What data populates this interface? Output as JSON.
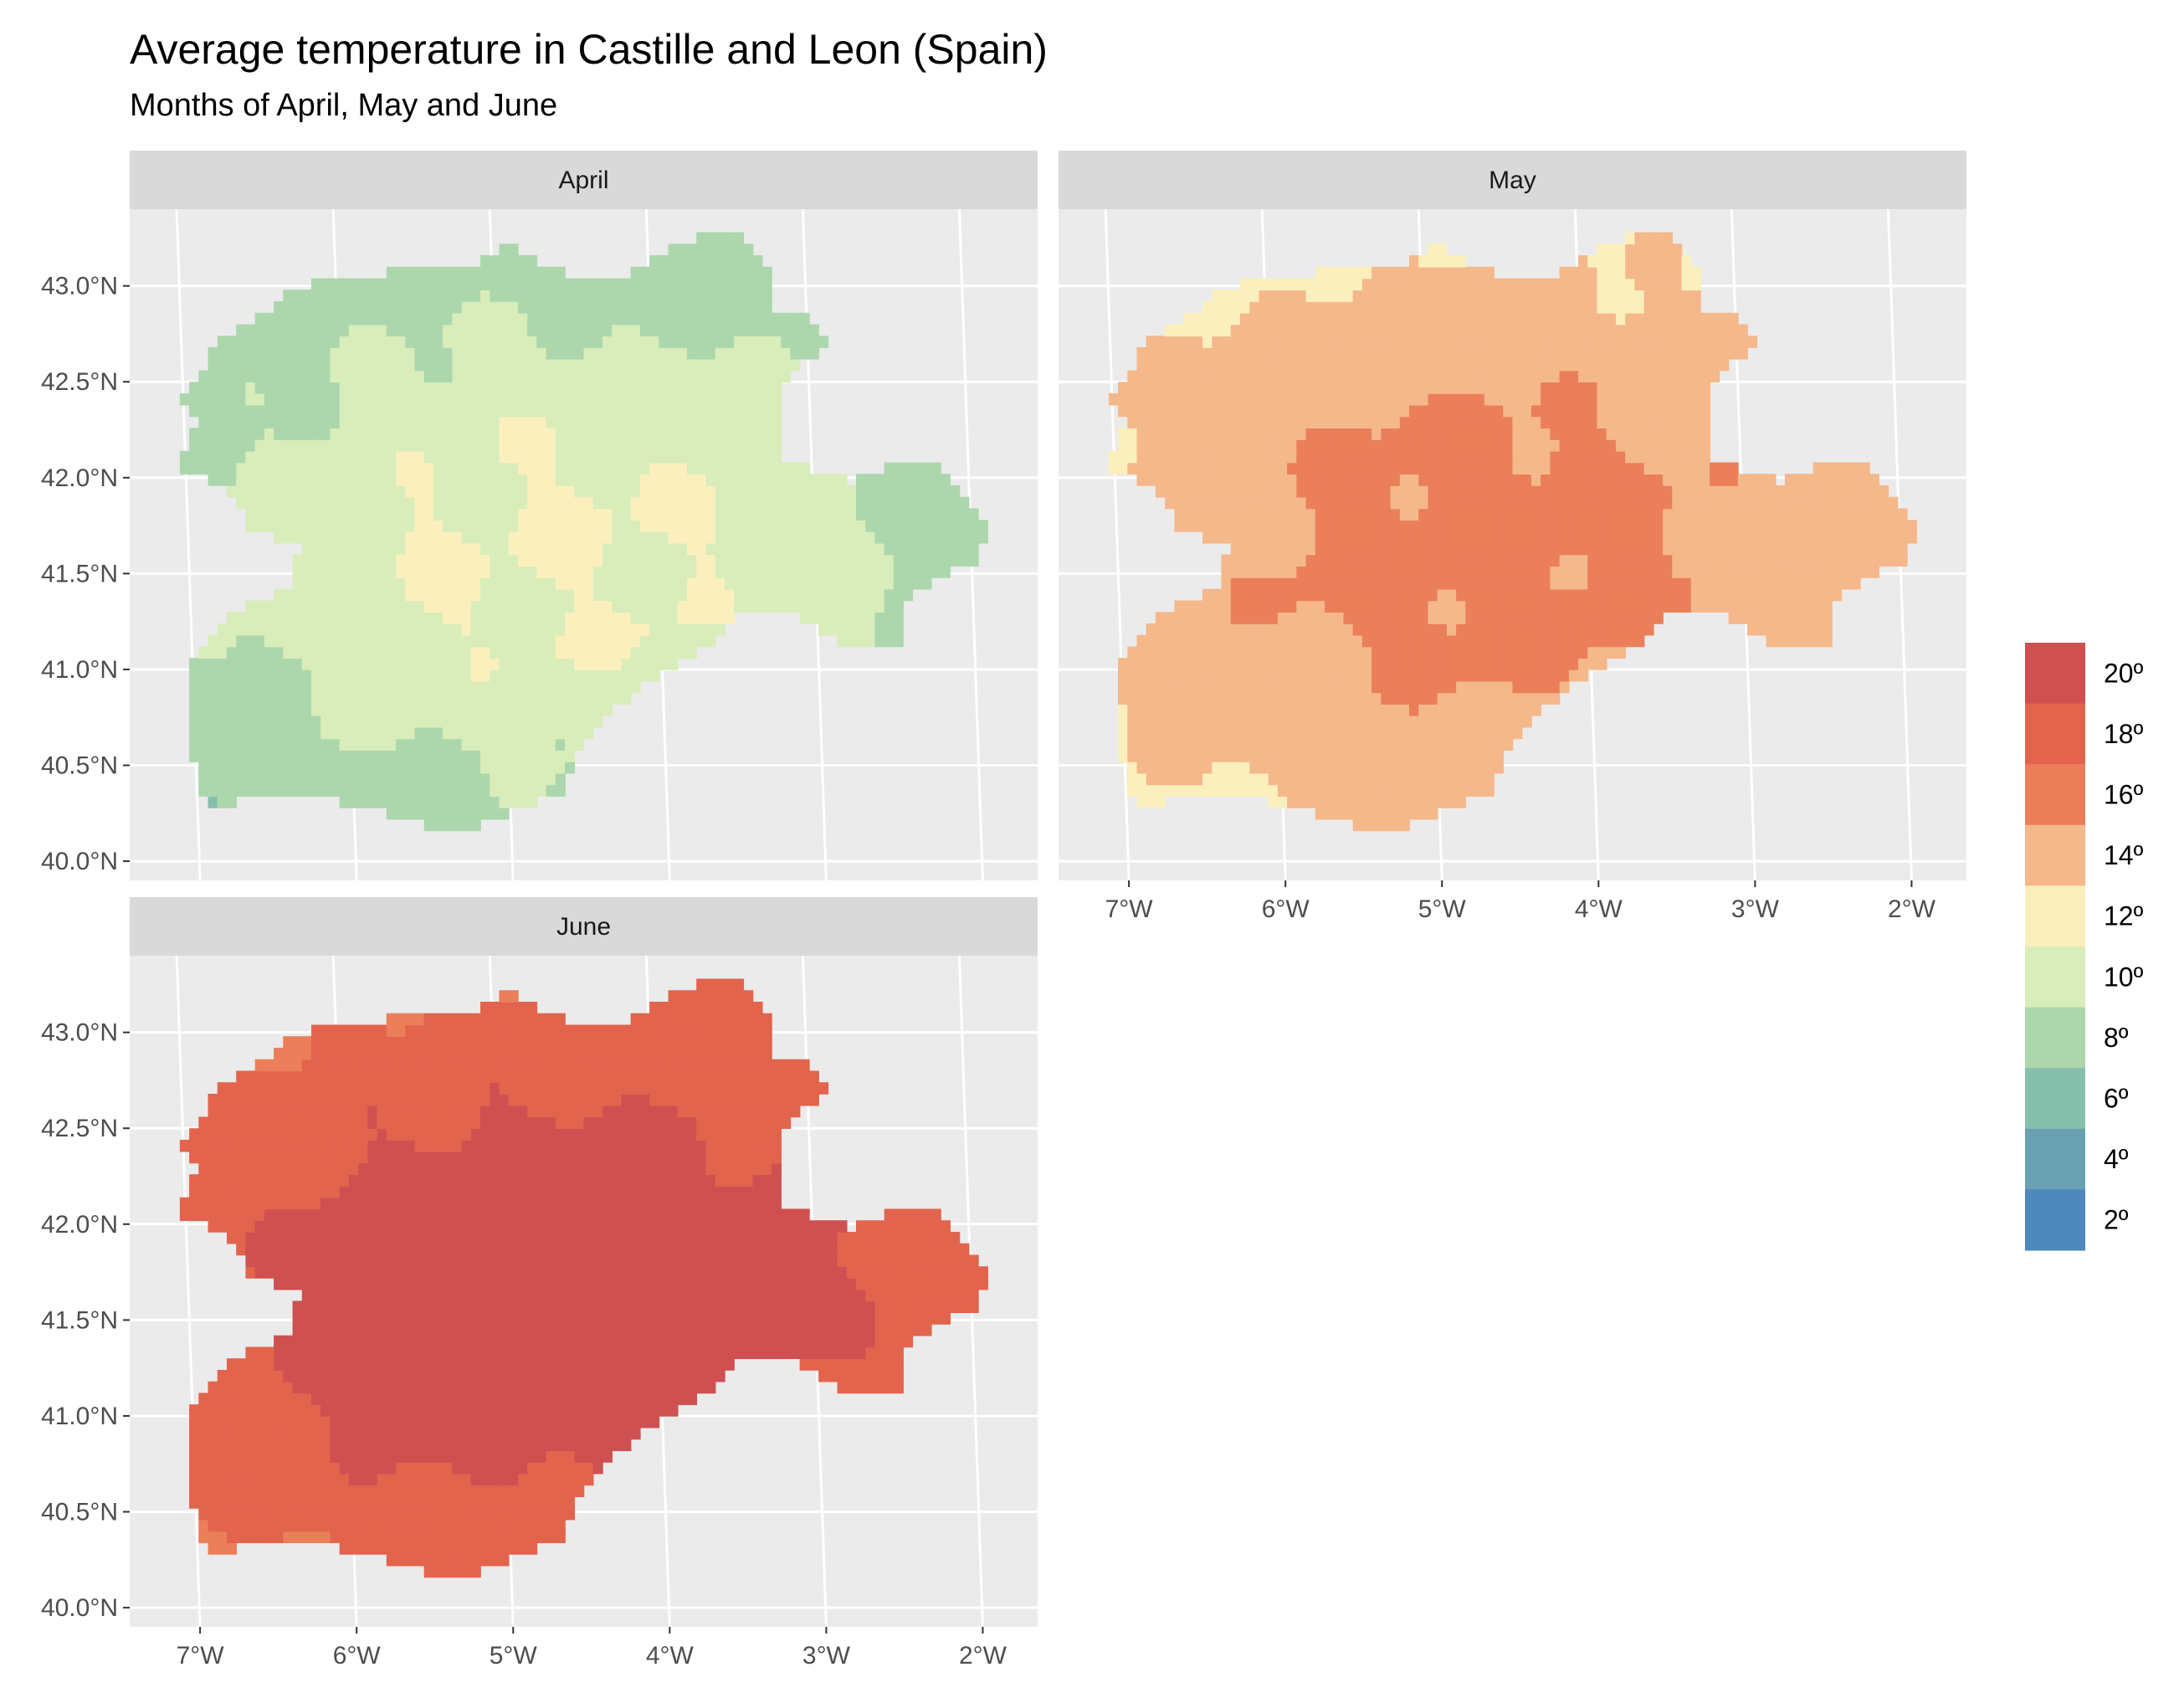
{
  "title": "Average temperature in Castille and Leon (Spain)",
  "subtitle": "Months of April, May and June",
  "colors": {
    "panel_background": "#ebebeb",
    "strip_background": "#d9d9d9",
    "grid": "#ffffff",
    "palette": [
      "#4e88bc",
      "#69a1b2",
      "#86c0ad",
      "#acd7ad",
      "#d8edba",
      "#fbf0bd",
      "#f5b88b",
      "#ea7f5a",
      "#e2644d",
      "#cf5050"
    ]
  },
  "chart_data": {
    "type": "heatmap",
    "title": "Average temperature in Castille and Leon (Spain)",
    "subtitle": "Months of April, May and June",
    "facets": [
      {
        "label": "April",
        "shade_base": 8.5,
        "shade_amp": 2.5,
        "approx_range": [
          2,
          13
        ]
      },
      {
        "label": "May",
        "shade_base": 13.5,
        "shade_amp": 2.0,
        "approx_range": [
          6,
          18
        ]
      },
      {
        "label": "June",
        "shade_base": 18.0,
        "shade_amp": 2.5,
        "approx_range": [
          11,
          21
        ]
      }
    ],
    "x_ticks": [
      "7°W",
      "6°W",
      "5°W",
      "4°W",
      "3°W",
      "2°W"
    ],
    "x_tick_values": [
      -7,
      -6,
      -5,
      -4,
      -3,
      -2
    ],
    "y_ticks": [
      "40.0°N",
      "40.5°N",
      "41.0°N",
      "41.5°N",
      "42.0°N",
      "42.5°N",
      "43.0°N"
    ],
    "y_tick_values": [
      40.0,
      40.5,
      41.0,
      41.5,
      42.0,
      42.5,
      43.0
    ],
    "xlim": [
      -7.3,
      -1.5
    ],
    "ylim": [
      39.9,
      43.4
    ],
    "region_outline": [
      [
        -6.9,
        42.5
      ],
      [
        -6.75,
        42.7
      ],
      [
        -6.45,
        42.85
      ],
      [
        -6.3,
        42.95
      ],
      [
        -6.1,
        43.0
      ],
      [
        -5.85,
        43.03
      ],
      [
        -5.5,
        43.05
      ],
      [
        -5.1,
        43.1
      ],
      [
        -4.9,
        43.2
      ],
      [
        -4.6,
        43.05
      ],
      [
        -4.35,
        42.98
      ],
      [
        -4.1,
        43.05
      ],
      [
        -3.85,
        43.2
      ],
      [
        -3.45,
        43.25
      ],
      [
        -3.25,
        43.05
      ],
      [
        -3.2,
        42.85
      ],
      [
        -3.0,
        42.8
      ],
      [
        -2.85,
        42.65
      ],
      [
        -3.1,
        42.55
      ],
      [
        -3.2,
        42.3
      ],
      [
        -3.2,
        42.1
      ],
      [
        -2.95,
        42.0
      ],
      [
        -2.7,
        41.95
      ],
      [
        -2.45,
        42.05
      ],
      [
        -2.15,
        42.05
      ],
      [
        -1.95,
        41.85
      ],
      [
        -1.85,
        41.75
      ],
      [
        -1.9,
        41.55
      ],
      [
        -2.2,
        41.45
      ],
      [
        -2.4,
        41.3
      ],
      [
        -2.4,
        41.1
      ],
      [
        -2.7,
        41.1
      ],
      [
        -2.9,
        41.15
      ],
      [
        -3.05,
        41.25
      ],
      [
        -3.45,
        41.25
      ],
      [
        -3.7,
        41.05
      ],
      [
        -3.95,
        40.95
      ],
      [
        -4.25,
        40.75
      ],
      [
        -4.45,
        40.6
      ],
      [
        -4.55,
        40.35
      ],
      [
        -4.85,
        40.25
      ],
      [
        -5.0,
        40.18
      ],
      [
        -5.3,
        40.12
      ],
      [
        -5.7,
        40.22
      ],
      [
        -6.05,
        40.3
      ],
      [
        -6.5,
        40.3
      ],
      [
        -6.85,
        40.25
      ],
      [
        -6.95,
        40.6
      ],
      [
        -6.95,
        41.0
      ],
      [
        -6.7,
        41.25
      ],
      [
        -6.3,
        41.4
      ],
      [
        -6.25,
        41.6
      ],
      [
        -6.55,
        41.7
      ],
      [
        -6.75,
        41.95
      ],
      [
        -7.05,
        42.0
      ],
      [
        -6.9,
        42.25
      ],
      [
        -7.0,
        42.4
      ],
      [
        -6.9,
        42.5
      ]
    ]
  },
  "legend": {
    "labels": [
      "20º",
      "18º",
      "16º",
      "14º",
      "12º",
      "10º",
      "8º",
      "6º",
      "4º",
      "2º"
    ]
  }
}
